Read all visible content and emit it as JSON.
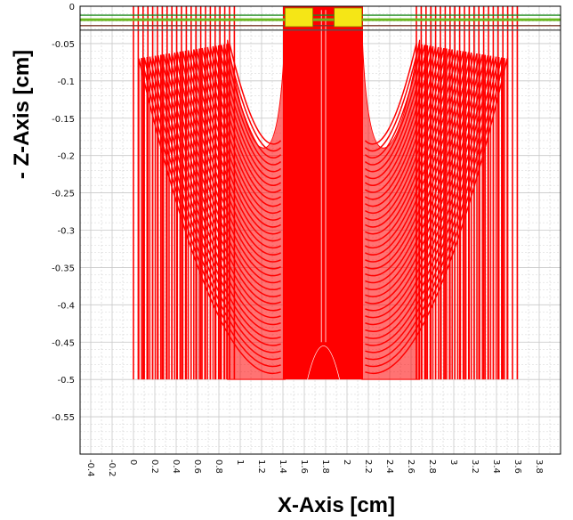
{
  "chart_data": {
    "type": "line",
    "title": "",
    "xlabel": "X-Axis [cm]",
    "ylabel": "- Z-Axis [cm]",
    "xlim": [
      -0.5,
      4.0
    ],
    "ylim": [
      -0.6,
      0.0
    ],
    "grid": true,
    "x_ticks": [
      "-0.4",
      "-0.2",
      "0",
      "0.2",
      "0.4",
      "0.6",
      "0.8",
      "1",
      "1.2",
      "1.4",
      "1.6",
      "1.8",
      "2",
      "2.2",
      "2.4",
      "2.6",
      "2.8",
      "3",
      "3.2",
      "3.4",
      "3.6",
      "3.8"
    ],
    "y_ticks": [
      "0",
      "-0.05",
      "-0.1",
      "-0.15",
      "-0.2",
      "-0.25",
      "-0.3",
      "-0.35",
      "-0.4",
      "-0.45",
      "-0.5",
      "-0.55"
    ],
    "electrodes": [
      {
        "x": [
          1.42,
          1.68
        ],
        "z": [
          0.0,
          -0.025
        ],
        "color": "#f5e616"
      },
      {
        "x": [
          1.88,
          2.14
        ],
        "z": [
          0.0,
          -0.025
        ],
        "color": "#f5e616"
      }
    ],
    "surface_lines": [
      {
        "z": -0.012,
        "color": "#1f8a1f"
      },
      {
        "z": -0.018,
        "color": "#6ab81f"
      },
      {
        "z": -0.026,
        "color": "#7a3a2a"
      },
      {
        "z": -0.032,
        "color": "#555555"
      }
    ],
    "field_region": {
      "x": [
        0.0,
        3.6
      ],
      "z_bottom": -0.5,
      "center_x": 1.78,
      "center_band": [
        1.4,
        2.15
      ],
      "shoulder_z": -0.19,
      "color": "#ff0000"
    },
    "colors": {
      "field": "#ff0000",
      "grid": "#c8c8c8",
      "electrode": "#f5e616"
    }
  }
}
